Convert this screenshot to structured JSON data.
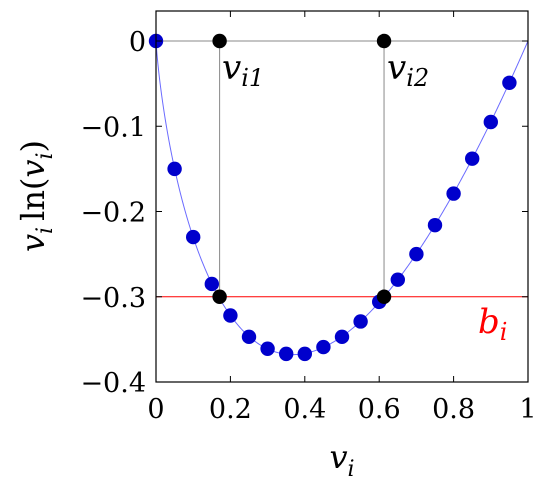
{
  "chart_data": {
    "type": "scatter",
    "title": "",
    "xlabel": {
      "main": "v",
      "sub": "i"
    },
    "ylabel": {
      "main": "v",
      "sub": "i",
      "func": "ln(",
      "arg": "v",
      "argsub": "i",
      "close": ")"
    },
    "xlim": [
      0,
      1
    ],
    "ylim": [
      -0.4,
      0.035
    ],
    "x_ticks": [
      0,
      0.2,
      0.4,
      0.6,
      0.8,
      1
    ],
    "x_tick_labels": [
      "0",
      "0.2",
      "0.4",
      "0.6",
      "0.8",
      "1"
    ],
    "y_ticks": [
      0,
      -0.1,
      -0.2,
      -0.3,
      -0.4
    ],
    "y_tick_labels": [
      "0",
      "−0.1",
      "−0.2",
      "−0.3",
      "−0.4"
    ],
    "grid": false,
    "curve": {
      "function": "x*ln(x)",
      "color": "#6b6bff"
    },
    "series": [
      {
        "color": "#0000cc",
        "x": [
          0,
          0.05,
          0.1,
          0.15,
          0.2,
          0.25,
          0.3,
          0.35,
          0.4,
          0.45,
          0.5,
          0.55,
          0.6,
          0.65,
          0.7,
          0.75,
          0.8,
          0.85,
          0.9,
          0.95
        ],
        "y": [
          0,
          -0.15,
          -0.23,
          -0.285,
          -0.322,
          -0.347,
          -0.361,
          -0.367,
          -0.367,
          -0.359,
          -0.347,
          -0.329,
          -0.306,
          -0.28,
          -0.25,
          -0.216,
          -0.179,
          -0.138,
          -0.095,
          -0.049
        ]
      }
    ],
    "horizontal_line": {
      "y": -0.3,
      "color": "#ff0000",
      "label": {
        "main": "b",
        "sub": "i"
      }
    },
    "reference_line": {
      "y": 0,
      "color": "#888888"
    },
    "marked_points": [
      {
        "x": 0.171,
        "y": 0,
        "color": "#000000",
        "label": {
          "main": "v",
          "sub": "i1"
        }
      },
      {
        "x": 0.613,
        "y": 0,
        "color": "#000000",
        "label": {
          "main": "v",
          "sub": "i2"
        }
      },
      {
        "x": 0.171,
        "y": -0.3,
        "color": "#000000"
      },
      {
        "x": 0.613,
        "y": -0.3,
        "color": "#000000"
      }
    ]
  }
}
